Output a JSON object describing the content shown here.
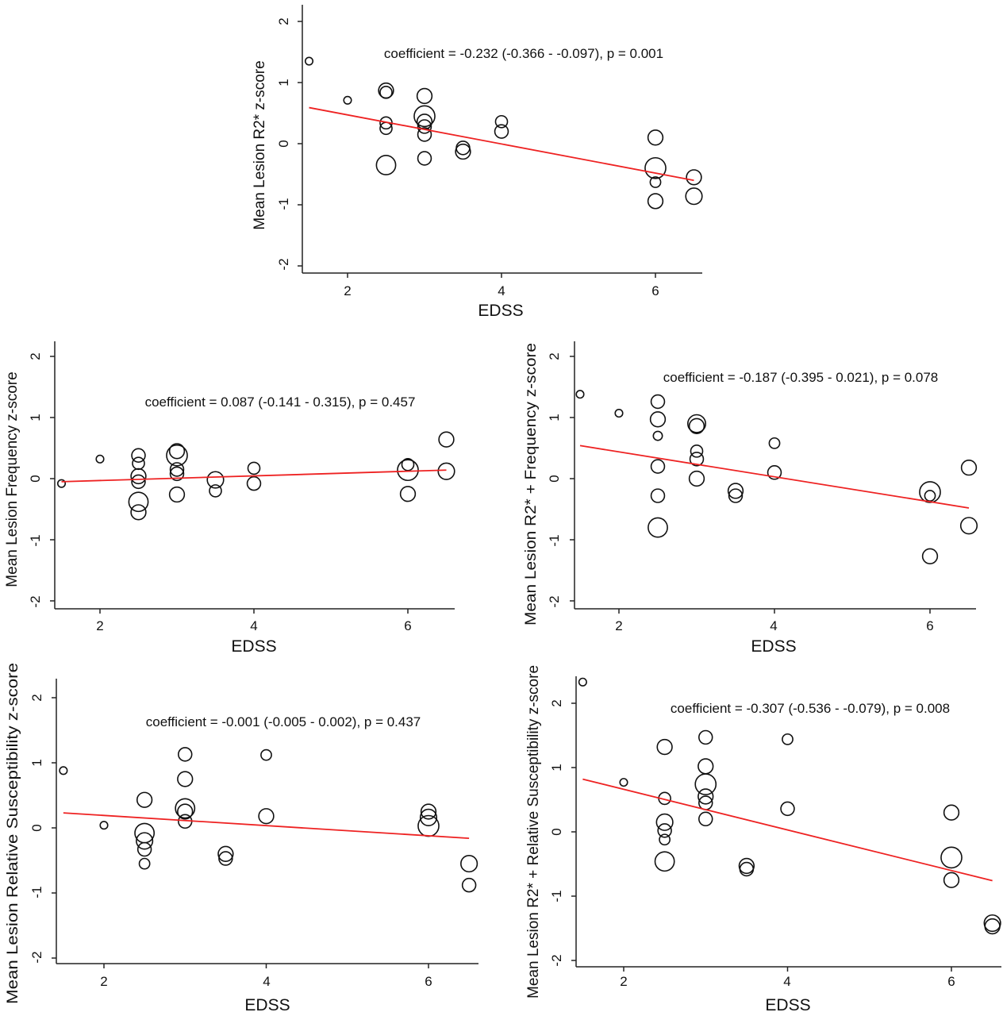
{
  "chart_data": [
    {
      "type": "scatter",
      "xlabel": "EDSS",
      "ylabel": "Mean Lesion R2* z-score",
      "annotation": "coefficient = -0.232 (-0.366 - -0.097), p = 0.001",
      "xlim": [
        1.4,
        6.6
      ],
      "ylim": [
        -2.15,
        2.3
      ],
      "xticks": [
        "2",
        "4",
        "6"
      ],
      "yticks": [
        "-2",
        "-1",
        "0",
        "1",
        "2"
      ],
      "fit_line": {
        "x": [
          1.5,
          6.5
        ],
        "y": [
          0.59,
          -0.6
        ]
      },
      "points": [
        {
          "x": 1.5,
          "y": 1.35,
          "size": 3
        },
        {
          "x": 2.0,
          "y": 0.71,
          "size": 3
        },
        {
          "x": 2.5,
          "y": 0.87,
          "size": 8
        },
        {
          "x": 2.5,
          "y": 0.84,
          "size": 6
        },
        {
          "x": 2.5,
          "y": 0.34,
          "size": 6
        },
        {
          "x": 2.5,
          "y": 0.25,
          "size": 6
        },
        {
          "x": 2.5,
          "y": -0.35,
          "size": 11
        },
        {
          "x": 3.0,
          "y": 0.78,
          "size": 8
        },
        {
          "x": 3.0,
          "y": 0.45,
          "size": 12
        },
        {
          "x": 3.0,
          "y": 0.36,
          "size": 8
        },
        {
          "x": 3.0,
          "y": 0.28,
          "size": 7
        },
        {
          "x": 3.0,
          "y": 0.15,
          "size": 7
        },
        {
          "x": 3.0,
          "y": -0.24,
          "size": 7
        },
        {
          "x": 3.5,
          "y": -0.07,
          "size": 7
        },
        {
          "x": 3.5,
          "y": -0.13,
          "size": 8
        },
        {
          "x": 4.0,
          "y": 0.36,
          "size": 6
        },
        {
          "x": 4.0,
          "y": 0.2,
          "size": 7
        },
        {
          "x": 6.0,
          "y": 0.1,
          "size": 8
        },
        {
          "x": 6.0,
          "y": -0.4,
          "size": 12
        },
        {
          "x": 6.0,
          "y": -0.63,
          "size": 5
        },
        {
          "x": 6.0,
          "y": -0.94,
          "size": 8
        },
        {
          "x": 6.5,
          "y": -0.55,
          "size": 8
        },
        {
          "x": 6.5,
          "y": -0.86,
          "size": 9
        }
      ]
    },
    {
      "type": "scatter",
      "xlabel": "EDSS",
      "ylabel": "Mean Lesion Frequency z-score",
      "annotation": "coefficient = 0.087 (-0.141 - 0.315), p = 0.457",
      "xlim": [
        1.4,
        6.6
      ],
      "ylim": [
        -2.15,
        2.3
      ],
      "xticks": [
        "2",
        "4",
        "6"
      ],
      "yticks": [
        "-2",
        "-1",
        "0",
        "1",
        "2"
      ],
      "fit_line": {
        "x": [
          1.5,
          6.5
        ],
        "y": [
          -0.05,
          0.14
        ]
      },
      "points": [
        {
          "x": 1.5,
          "y": -0.08,
          "size": 3
        },
        {
          "x": 2.0,
          "y": 0.32,
          "size": 3
        },
        {
          "x": 2.5,
          "y": 0.38,
          "size": 7
        },
        {
          "x": 2.5,
          "y": 0.25,
          "size": 6
        },
        {
          "x": 2.5,
          "y": 0.04,
          "size": 8
        },
        {
          "x": 2.5,
          "y": -0.05,
          "size": 7
        },
        {
          "x": 2.5,
          "y": -0.38,
          "size": 11
        },
        {
          "x": 2.5,
          "y": -0.55,
          "size": 8
        },
        {
          "x": 3.0,
          "y": 0.45,
          "size": 8
        },
        {
          "x": 3.0,
          "y": 0.38,
          "size": 12
        },
        {
          "x": 3.0,
          "y": 0.15,
          "size": 7
        },
        {
          "x": 3.0,
          "y": 0.08,
          "size": 7
        },
        {
          "x": 3.0,
          "y": -0.26,
          "size": 8
        },
        {
          "x": 3.5,
          "y": -0.02,
          "size": 9
        },
        {
          "x": 3.5,
          "y": -0.2,
          "size": 6
        },
        {
          "x": 4.0,
          "y": 0.17,
          "size": 6
        },
        {
          "x": 4.0,
          "y": -0.08,
          "size": 7
        },
        {
          "x": 6.0,
          "y": 0.23,
          "size": 6
        },
        {
          "x": 6.0,
          "y": 0.14,
          "size": 12
        },
        {
          "x": 6.0,
          "y": -0.25,
          "size": 8
        },
        {
          "x": 6.5,
          "y": 0.64,
          "size": 8
        },
        {
          "x": 6.5,
          "y": 0.12,
          "size": 9
        }
      ]
    },
    {
      "type": "scatter",
      "xlabel": "EDSS",
      "ylabel": "Mean Lesion R2* + Frequency z-score",
      "annotation": "coefficient = -0.187 (-0.395 - 0.021), p = 0.078",
      "xlim": [
        1.4,
        6.6
      ],
      "ylim": [
        -2.15,
        2.3
      ],
      "xticks": [
        "2",
        "4",
        "6"
      ],
      "yticks": [
        "-2",
        "-1",
        "0",
        "1",
        "2"
      ],
      "fit_line": {
        "x": [
          1.5,
          6.5
        ],
        "y": [
          0.54,
          -0.48
        ]
      },
      "points": [
        {
          "x": 1.5,
          "y": 1.38,
          "size": 3
        },
        {
          "x": 2.0,
          "y": 1.07,
          "size": 3
        },
        {
          "x": 2.5,
          "y": 1.26,
          "size": 7
        },
        {
          "x": 2.5,
          "y": 0.97,
          "size": 8
        },
        {
          "x": 2.5,
          "y": 0.7,
          "size": 4
        },
        {
          "x": 2.5,
          "y": 0.2,
          "size": 7
        },
        {
          "x": 2.5,
          "y": -0.28,
          "size": 7
        },
        {
          "x": 2.5,
          "y": -0.8,
          "size": 11
        },
        {
          "x": 3.0,
          "y": 0.9,
          "size": 10
        },
        {
          "x": 3.0,
          "y": 0.86,
          "size": 8
        },
        {
          "x": 3.0,
          "y": 0.45,
          "size": 6
        },
        {
          "x": 3.0,
          "y": 0.32,
          "size": 7
        },
        {
          "x": 3.0,
          "y": 0.0,
          "size": 8
        },
        {
          "x": 3.5,
          "y": -0.2,
          "size": 8
        },
        {
          "x": 3.5,
          "y": -0.28,
          "size": 7
        },
        {
          "x": 4.0,
          "y": 0.58,
          "size": 5
        },
        {
          "x": 4.0,
          "y": 0.1,
          "size": 7
        },
        {
          "x": 6.0,
          "y": -0.22,
          "size": 12
        },
        {
          "x": 6.0,
          "y": -0.28,
          "size": 5
        },
        {
          "x": 6.0,
          "y": -1.27,
          "size": 8
        },
        {
          "x": 6.5,
          "y": 0.18,
          "size": 8
        },
        {
          "x": 6.5,
          "y": -0.77,
          "size": 9
        }
      ]
    },
    {
      "type": "scatter",
      "xlabel": "EDSS",
      "ylabel": "Mean Lesion Relative Susceptibility z-score",
      "annotation": "coefficient = -0.001 (-0.005 - 0.002), p = 0.437",
      "xlim": [
        1.4,
        6.6
      ],
      "ylim": [
        -2.15,
        2.3
      ],
      "xticks": [
        "2",
        "4",
        "6"
      ],
      "yticks": [
        "-2",
        "-1",
        "0",
        "1",
        "2"
      ],
      "fit_line": {
        "x": [
          1.5,
          6.5
        ],
        "y": [
          0.23,
          -0.16
        ]
      },
      "points": [
        {
          "x": 1.5,
          "y": 0.88,
          "size": 3
        },
        {
          "x": 2.0,
          "y": 0.04,
          "size": 3
        },
        {
          "x": 2.5,
          "y": 0.43,
          "size": 8
        },
        {
          "x": 2.5,
          "y": -0.08,
          "size": 11
        },
        {
          "x": 2.5,
          "y": -0.2,
          "size": 9
        },
        {
          "x": 2.5,
          "y": -0.33,
          "size": 7
        },
        {
          "x": 2.5,
          "y": -0.55,
          "size": 5
        },
        {
          "x": 3.0,
          "y": 1.13,
          "size": 7
        },
        {
          "x": 3.0,
          "y": 0.75,
          "size": 8
        },
        {
          "x": 3.0,
          "y": 0.3,
          "size": 11
        },
        {
          "x": 3.0,
          "y": 0.25,
          "size": 8
        },
        {
          "x": 3.0,
          "y": 0.1,
          "size": 7
        },
        {
          "x": 3.5,
          "y": -0.4,
          "size": 8
        },
        {
          "x": 3.5,
          "y": -0.47,
          "size": 7
        },
        {
          "x": 4.0,
          "y": 1.12,
          "size": 5
        },
        {
          "x": 4.0,
          "y": 0.18,
          "size": 8
        },
        {
          "x": 6.0,
          "y": 0.25,
          "size": 8
        },
        {
          "x": 6.0,
          "y": 0.16,
          "size": 9
        },
        {
          "x": 6.0,
          "y": 0.03,
          "size": 12
        },
        {
          "x": 6.5,
          "y": -0.55,
          "size": 9
        },
        {
          "x": 6.5,
          "y": -0.88,
          "size": 7
        }
      ]
    },
    {
      "type": "scatter",
      "xlabel": "EDSS",
      "ylabel": "Mean Lesion R2* + Relative Susceptibility z-score",
      "annotation": "coefficient = -0.307 (-0.536 - -0.079), p = 0.008",
      "xlim": [
        1.4,
        6.6
      ],
      "ylim": [
        -2.15,
        2.3
      ],
      "xticks": [
        "2",
        "4",
        "6"
      ],
      "yticks": [
        "-2",
        "-1",
        "0",
        "1",
        "2"
      ],
      "fit_line": {
        "x": [
          1.5,
          6.5
        ],
        "y": [
          0.82,
          -0.76
        ]
      },
      "points": [
        {
          "x": 1.5,
          "y": 2.33,
          "size": 3
        },
        {
          "x": 2.0,
          "y": 0.77,
          "size": 3
        },
        {
          "x": 2.5,
          "y": 1.32,
          "size": 8
        },
        {
          "x": 2.5,
          "y": 0.52,
          "size": 6
        },
        {
          "x": 2.5,
          "y": 0.15,
          "size": 9
        },
        {
          "x": 2.5,
          "y": 0.02,
          "size": 7
        },
        {
          "x": 2.5,
          "y": -0.12,
          "size": 5
        },
        {
          "x": 2.5,
          "y": -0.46,
          "size": 11
        },
        {
          "x": 3.0,
          "y": 1.47,
          "size": 7
        },
        {
          "x": 3.0,
          "y": 1.02,
          "size": 8
        },
        {
          "x": 3.0,
          "y": 0.74,
          "size": 12
        },
        {
          "x": 3.0,
          "y": 0.55,
          "size": 8
        },
        {
          "x": 3.0,
          "y": 0.45,
          "size": 7
        },
        {
          "x": 3.0,
          "y": 0.2,
          "size": 7
        },
        {
          "x": 3.5,
          "y": -0.53,
          "size": 8
        },
        {
          "x": 3.5,
          "y": -0.58,
          "size": 7
        },
        {
          "x": 4.0,
          "y": 1.44,
          "size": 5
        },
        {
          "x": 4.0,
          "y": 0.36,
          "size": 7
        },
        {
          "x": 6.0,
          "y": 0.3,
          "size": 8
        },
        {
          "x": 6.0,
          "y": -0.4,
          "size": 12
        },
        {
          "x": 6.0,
          "y": -0.75,
          "size": 8
        },
        {
          "x": 6.5,
          "y": -1.42,
          "size": 9
        },
        {
          "x": 6.5,
          "y": -1.47,
          "size": 8
        }
      ]
    }
  ],
  "colors": {
    "fit_line": "#ee2222",
    "marker": "#111111",
    "axis": "#222222"
  }
}
